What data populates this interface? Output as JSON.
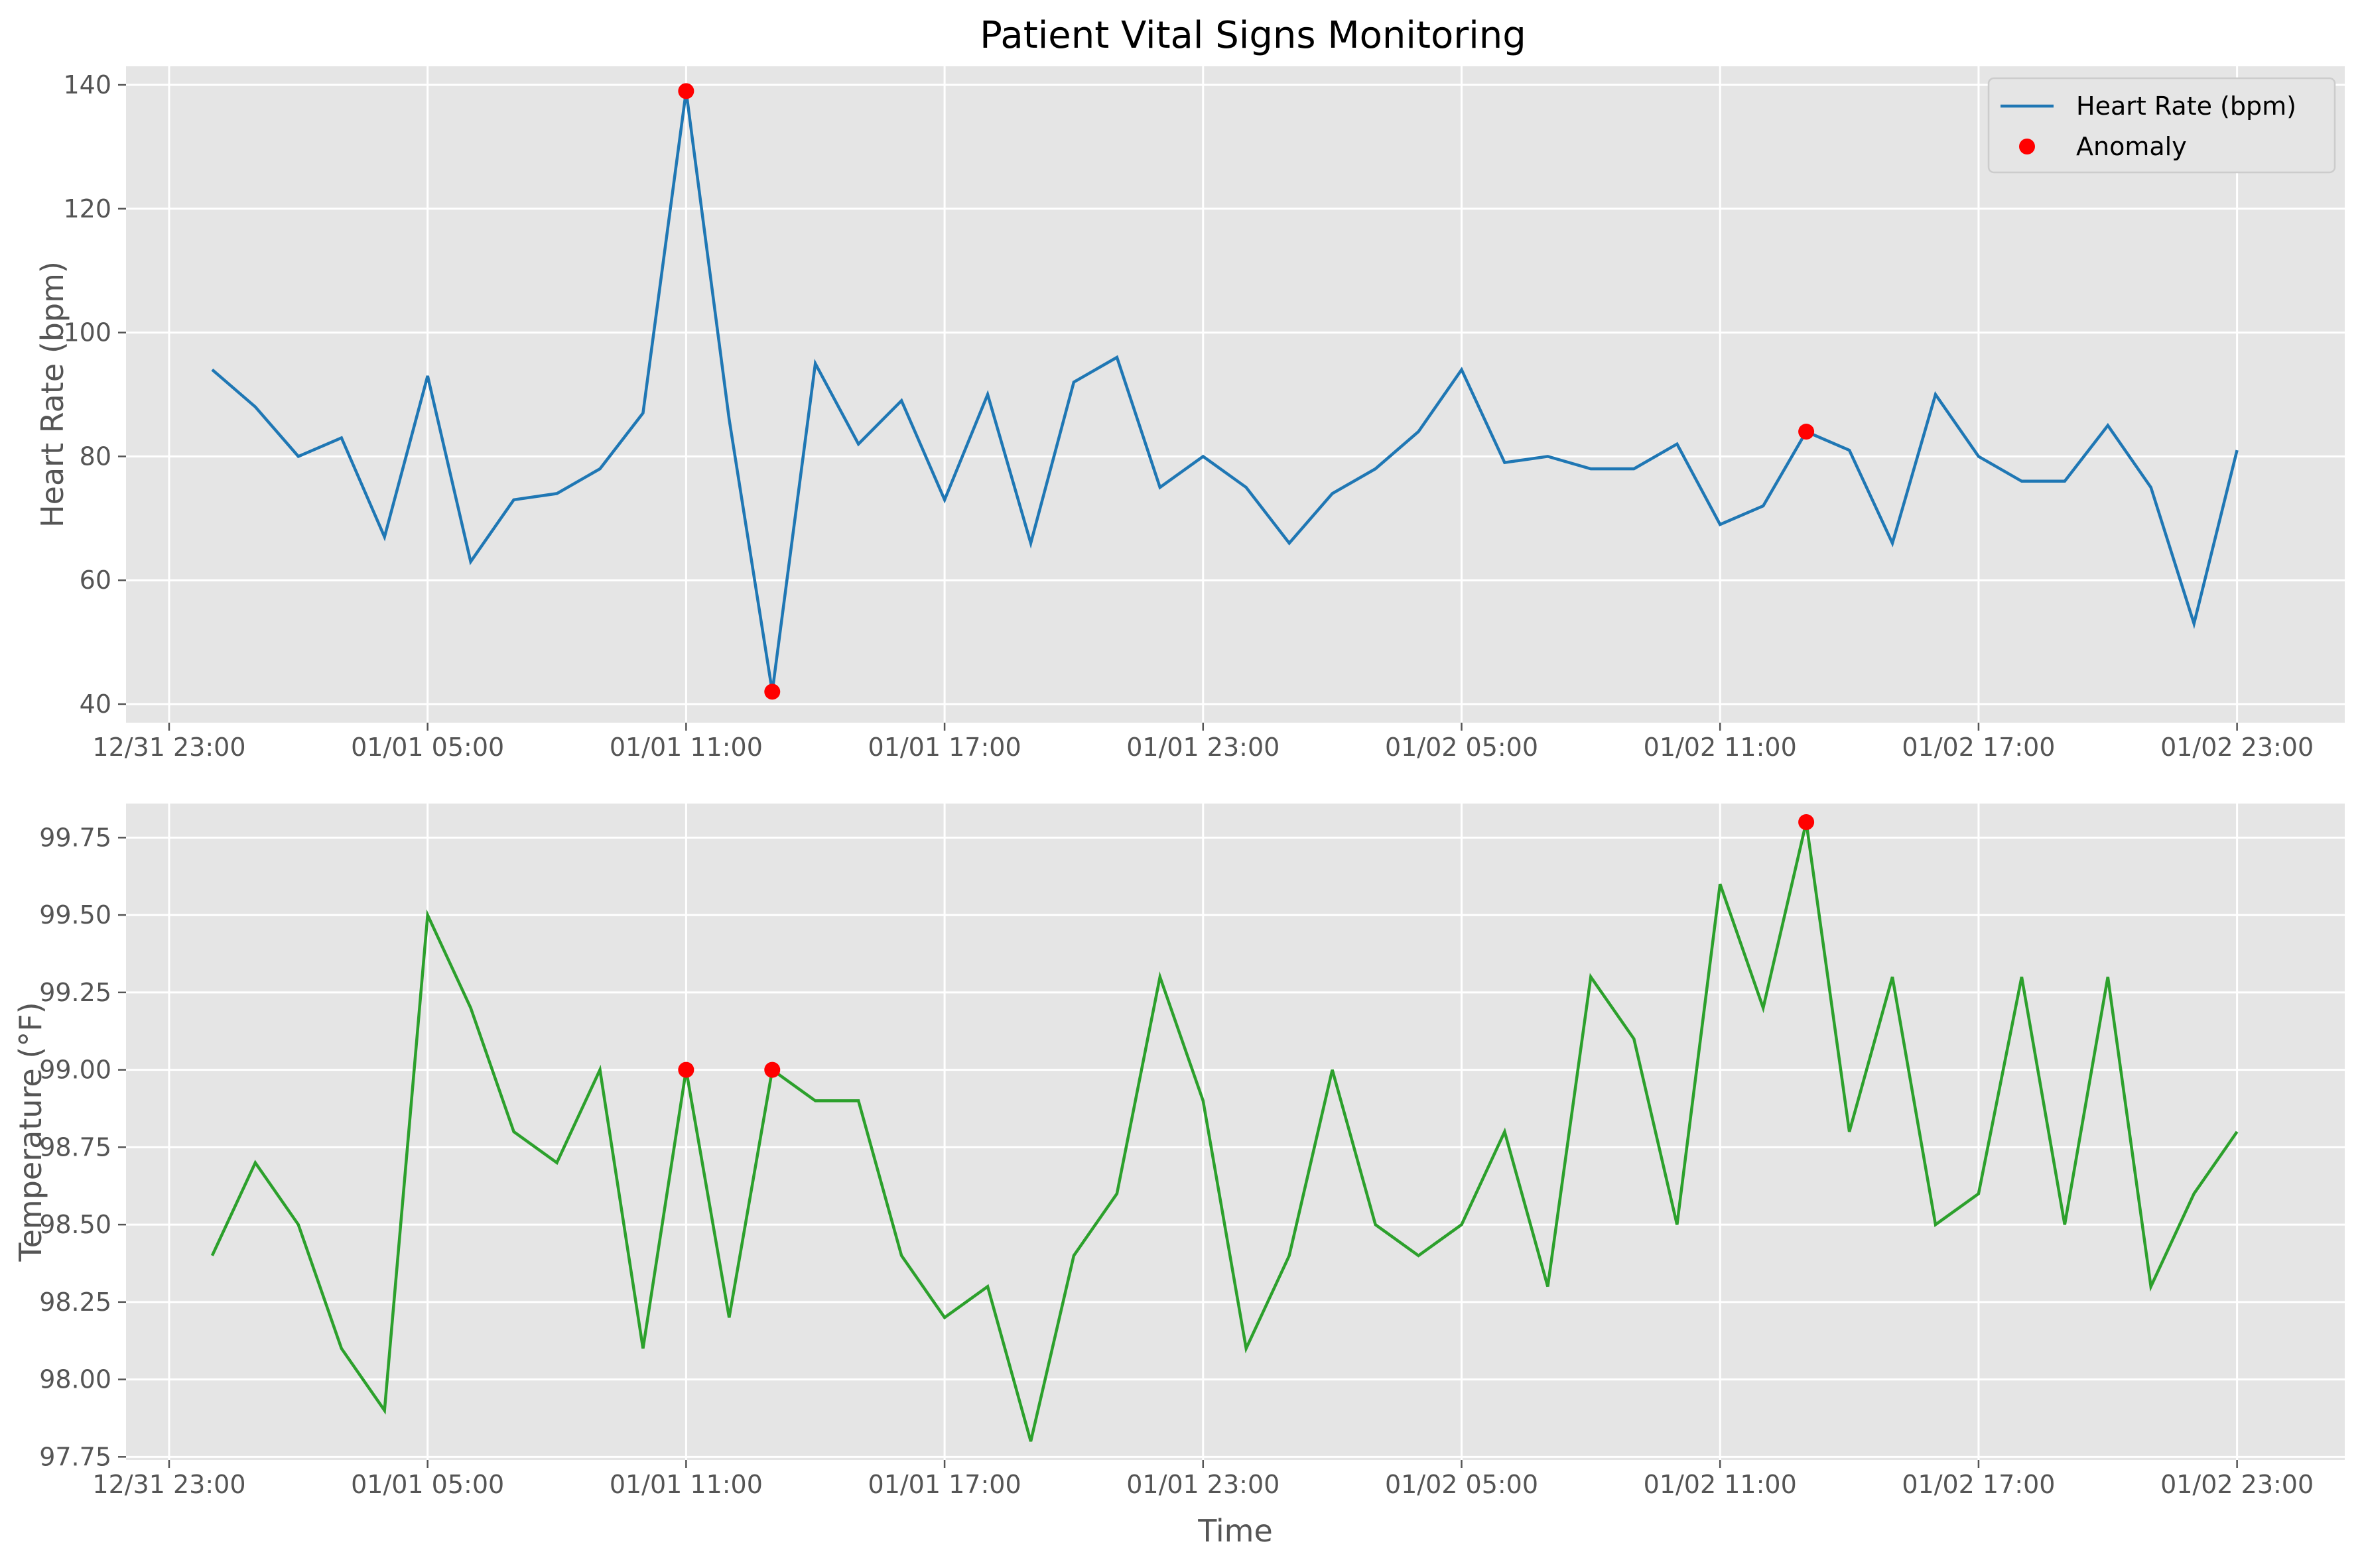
{
  "title": "Patient Vital Signs Monitoring",
  "colors": {
    "heart_rate": "#1f77b4",
    "temperature": "#2ca02c",
    "anomaly": "#ff0000",
    "plot_bg": "#e5e5e5"
  },
  "chart_data": [
    {
      "type": "line",
      "x": [
        "01/01 00:00",
        "01/01 01:00",
        "01/01 02:00",
        "01/01 03:00",
        "01/01 04:00",
        "01/01 05:00",
        "01/01 06:00",
        "01/01 07:00",
        "01/01 08:00",
        "01/01 09:00",
        "01/01 10:00",
        "01/01 11:00",
        "01/01 12:00",
        "01/01 13:00",
        "01/01 14:00",
        "01/01 15:00",
        "01/01 16:00",
        "01/01 17:00",
        "01/01 18:00",
        "01/01 19:00",
        "01/01 20:00",
        "01/01 21:00",
        "01/01 22:00",
        "01/01 23:00",
        "01/02 00:00",
        "01/02 01:00",
        "01/02 02:00",
        "01/02 03:00",
        "01/02 04:00",
        "01/02 05:00",
        "01/02 06:00",
        "01/02 07:00",
        "01/02 08:00",
        "01/02 09:00",
        "01/02 10:00",
        "01/02 11:00",
        "01/02 12:00",
        "01/02 13:00",
        "01/02 14:00",
        "01/02 15:00",
        "01/02 16:00",
        "01/02 17:00",
        "01/02 18:00",
        "01/02 19:00",
        "01/02 20:00",
        "01/02 21:00",
        "01/02 22:00",
        "01/02 23:00"
      ],
      "series": [
        {
          "name": "Heart Rate (bpm)",
          "values": [
            94,
            88,
            80,
            83,
            67,
            93,
            63,
            73,
            74,
            78,
            87,
            139,
            86,
            42,
            95,
            82,
            89,
            73,
            90,
            66,
            92,
            96,
            75,
            80,
            75,
            66,
            74,
            78,
            84,
            94,
            79,
            80,
            78,
            78,
            82,
            69,
            72,
            84,
            81,
            66,
            90,
            80,
            76,
            76,
            85,
            75,
            53,
            81
          ]
        },
        {
          "name": "Anomaly",
          "type": "scatter",
          "x": [
            "01/01 11:00",
            "01/01 13:00",
            "01/02 13:00"
          ],
          "values": [
            139,
            42,
            84
          ]
        }
      ],
      "xlabel": "",
      "ylabel": "Heart Rate (bpm)",
      "x_ticks": [
        "12/31 23:00",
        "01/01 05:00",
        "01/01 11:00",
        "01/01 17:00",
        "01/01 23:00",
        "01/02 05:00",
        "01/02 11:00",
        "01/02 17:00",
        "01/02 23:00"
      ],
      "y_ticks": [
        40,
        60,
        80,
        100,
        120,
        140
      ],
      "xlim": [
        "12/31 22:00",
        "01/03 01:30"
      ],
      "ylim": [
        37,
        143
      ],
      "grid": true,
      "legend": {
        "placement": "top-right",
        "entries": [
          "Heart Rate (bpm)",
          "Anomaly"
        ]
      }
    },
    {
      "type": "line",
      "x": [
        "01/01 00:00",
        "01/01 01:00",
        "01/01 02:00",
        "01/01 03:00",
        "01/01 04:00",
        "01/01 05:00",
        "01/01 06:00",
        "01/01 07:00",
        "01/01 08:00",
        "01/01 09:00",
        "01/01 10:00",
        "01/01 11:00",
        "01/01 12:00",
        "01/01 13:00",
        "01/01 14:00",
        "01/01 15:00",
        "01/01 16:00",
        "01/01 17:00",
        "01/01 18:00",
        "01/01 19:00",
        "01/01 20:00",
        "01/01 21:00",
        "01/01 22:00",
        "01/01 23:00",
        "01/02 00:00",
        "01/02 01:00",
        "01/02 02:00",
        "01/02 03:00",
        "01/02 04:00",
        "01/02 05:00",
        "01/02 06:00",
        "01/02 07:00",
        "01/02 08:00",
        "01/02 09:00",
        "01/02 10:00",
        "01/02 11:00",
        "01/02 12:00",
        "01/02 13:00",
        "01/02 14:00",
        "01/02 15:00",
        "01/02 16:00",
        "01/02 17:00",
        "01/02 18:00",
        "01/02 19:00",
        "01/02 20:00",
        "01/02 21:00",
        "01/02 22:00",
        "01/02 23:00"
      ],
      "series": [
        {
          "name": "Temperature",
          "values": [
            98.4,
            98.7,
            98.5,
            98.1,
            97.9,
            99.5,
            99.2,
            98.8,
            98.7,
            99.0,
            98.1,
            99.0,
            98.2,
            99.0,
            98.9,
            98.9,
            98.4,
            98.2,
            98.3,
            97.8,
            98.4,
            98.6,
            99.3,
            98.9,
            98.1,
            98.4,
            99.0,
            98.5,
            98.4,
            98.5,
            98.8,
            98.3,
            99.3,
            99.1,
            98.5,
            99.6,
            99.2,
            99.8,
            98.8,
            99.3,
            98.5,
            98.6,
            99.3,
            98.5,
            99.3,
            98.3,
            98.6,
            98.8
          ]
        },
        {
          "name": "Anomaly",
          "type": "scatter",
          "x": [
            "01/01 11:00",
            "01/01 13:00",
            "01/02 13:00"
          ],
          "values": [
            99.0,
            99.0,
            99.8
          ]
        }
      ],
      "xlabel": "Time",
      "ylabel": "Temperature (°F)",
      "x_ticks": [
        "12/31 23:00",
        "01/01 05:00",
        "01/01 11:00",
        "01/01 17:00",
        "01/01 23:00",
        "01/02 05:00",
        "01/02 11:00",
        "01/02 17:00",
        "01/02 23:00"
      ],
      "y_ticks": [
        "97.75",
        "98.00",
        "98.25",
        "98.50",
        "98.75",
        "99.00",
        "99.25",
        "99.50",
        "99.75"
      ],
      "xlim": [
        "12/31 22:00",
        "01/03 01:30"
      ],
      "ylim": [
        97.74,
        99.86
      ],
      "grid": true
    }
  ]
}
